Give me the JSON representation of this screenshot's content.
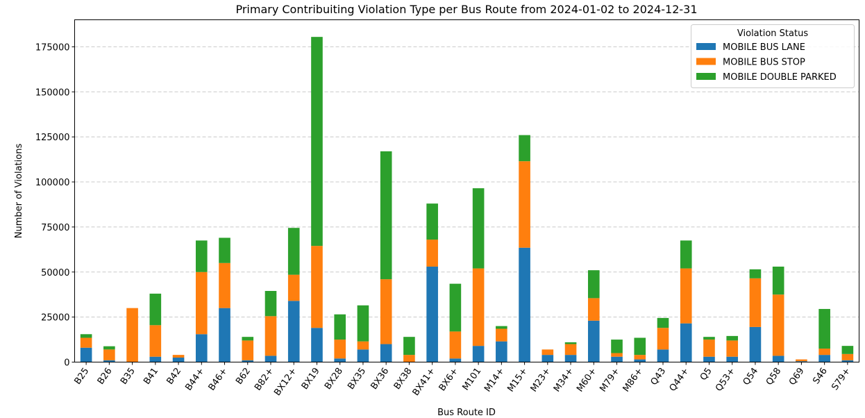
{
  "chart_data": {
    "type": "bar",
    "stacked": true,
    "title": "Primary Contribuiting Violation Type per Bus Route from 2024-01-02 to 2024-12-31",
    "xlabel": "Bus Route ID",
    "ylabel": "Number of Violations",
    "ylim": [
      0,
      190000
    ],
    "yticks": [
      0,
      25000,
      50000,
      75000,
      100000,
      125000,
      150000,
      175000
    ],
    "grid": "y-dashed",
    "legend": {
      "title": "Violation Status",
      "placement": "top-right"
    },
    "categories": [
      "B25",
      "B26",
      "B35",
      "B41",
      "B42",
      "B44+",
      "B46+",
      "B62",
      "B82+",
      "BX12+",
      "BX19",
      "BX28",
      "BX35",
      "BX36",
      "BX38",
      "BX41+",
      "BX6+",
      "M101",
      "M14+",
      "M15+",
      "M23+",
      "M34+",
      "M60+",
      "M79+",
      "M86+",
      "Q43",
      "Q44+",
      "Q5",
      "Q53+",
      "Q54",
      "Q58",
      "Q69",
      "S46",
      "S79+"
    ],
    "series": [
      {
        "name": "MOBILE BUS LANE",
        "color": "#1f77b4",
        "values": [
          8000,
          1000,
          0,
          3000,
          2500,
          15500,
          30000,
          1000,
          3500,
          34000,
          19000,
          2000,
          7000,
          10000,
          0,
          53000,
          2000,
          9000,
          11500,
          63500,
          4000,
          4000,
          23000,
          3000,
          1500,
          7000,
          21500,
          3000,
          3000,
          19500,
          3500,
          500,
          4000,
          1000
        ]
      },
      {
        "name": "MOBILE BUS STOP",
        "color": "#ff7f0e",
        "values": [
          5500,
          6000,
          30000,
          17500,
          1500,
          34500,
          25000,
          11000,
          22000,
          14500,
          45500,
          10500,
          4500,
          36000,
          4000,
          15000,
          15000,
          43000,
          7000,
          48000,
          3000,
          6000,
          12500,
          2000,
          2500,
          12000,
          30500,
          9500,
          9000,
          27000,
          34000,
          1000,
          3500,
          3500
        ]
      },
      {
        "name": "MOBILE DOUBLE PARKED",
        "color": "#2ca02c",
        "values": [
          2000,
          1800,
          0,
          17500,
          0,
          17500,
          14000,
          2000,
          14000,
          26000,
          116000,
          14000,
          20000,
          71000,
          10000,
          20000,
          26500,
          44500,
          1500,
          14500,
          0,
          1000,
          15500,
          7500,
          9500,
          5500,
          15500,
          1500,
          2500,
          5000,
          15500,
          0,
          22000,
          4500
        ]
      }
    ]
  }
}
